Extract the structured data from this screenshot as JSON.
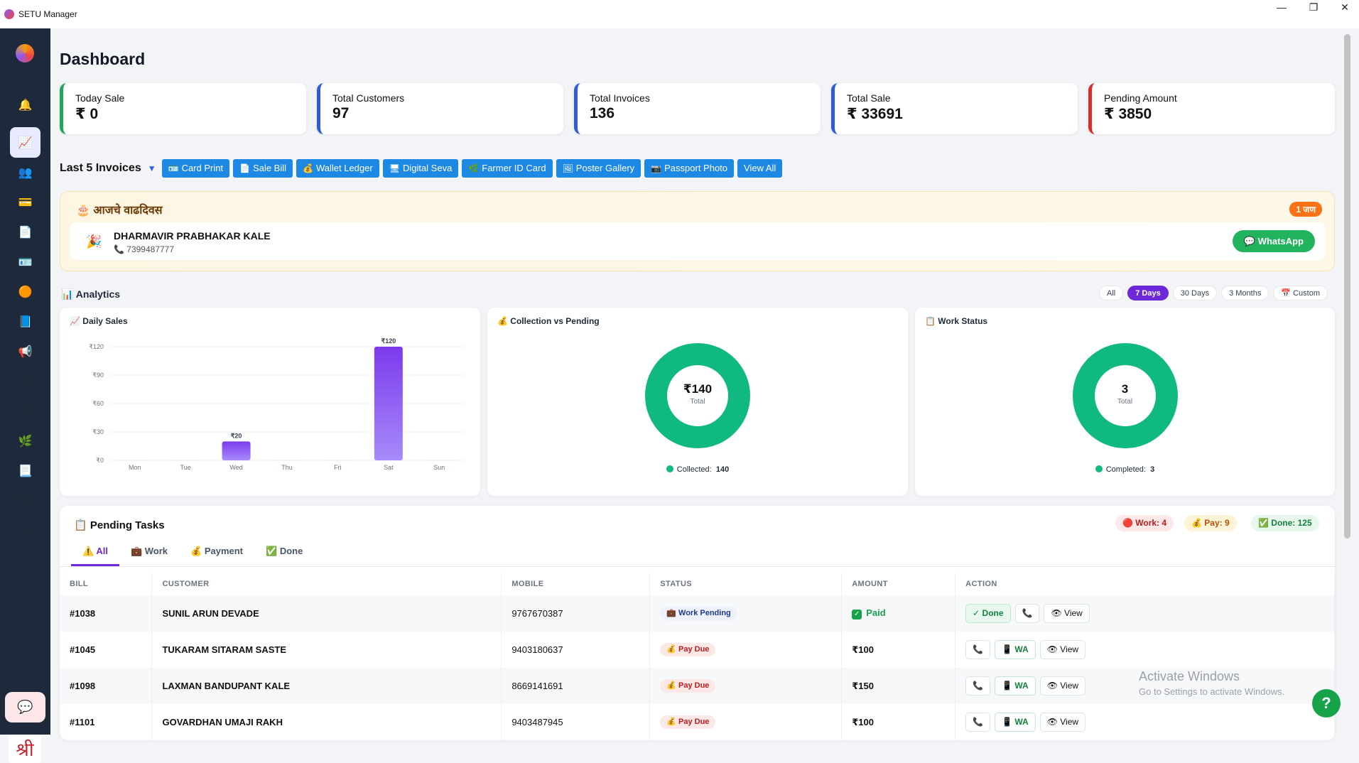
{
  "window": {
    "title": "SETU Manager",
    "minimize": "—",
    "maximize": "❐",
    "close": "✕"
  },
  "sidebar": {
    "items": [
      {
        "icon": "bell-icon",
        "glyph": "🔔"
      },
      {
        "icon": "chart-icon",
        "glyph": "📈",
        "active": true
      },
      {
        "icon": "users-icon",
        "glyph": "👥"
      },
      {
        "icon": "card-icon",
        "glyph": "💳"
      },
      {
        "icon": "document-icon",
        "glyph": "📄"
      },
      {
        "icon": "id-card-icon",
        "glyph": "🪪"
      },
      {
        "icon": "coin-icon",
        "glyph": "🟠"
      },
      {
        "icon": "book-icon",
        "glyph": "📘"
      },
      {
        "icon": "megaphone-icon",
        "glyph": "📢"
      },
      {
        "icon": "image-icon",
        "glyph": "🖼"
      },
      {
        "icon": "printer-icon",
        "glyph": "🖨"
      },
      {
        "icon": "plant-icon",
        "glyph": "🌿"
      },
      {
        "icon": "file-icon",
        "glyph": "📃"
      },
      {
        "icon": "monitor-icon",
        "glyph": "🖥"
      },
      {
        "icon": "gear-icon",
        "glyph": "⚙"
      }
    ],
    "chat_glyph": "💬",
    "bottom_logo": "श्री"
  },
  "page": {
    "title": "Dashboard"
  },
  "stats": [
    {
      "label": "Today Sale",
      "value": "₹ 0",
      "color": "#22a55a"
    },
    {
      "label": "Total Customers",
      "value": "97",
      "color": "#2f5bd6"
    },
    {
      "label": "Total Invoices",
      "value": "136",
      "color": "#2f5bd6"
    },
    {
      "label": "Total Sale",
      "value": "₹ 33691",
      "color": "#2f5bd6"
    },
    {
      "label": "Pending Amount",
      "value": "₹ 3850",
      "color": "#d92d2d"
    }
  ],
  "invoices": {
    "title": "Last 5 Invoices",
    "caret": "▼",
    "buttons": [
      {
        "label": "Card Print",
        "glyph": "🪪"
      },
      {
        "label": "Sale Bill",
        "glyph": "📄"
      },
      {
        "label": "Wallet Ledger",
        "glyph": "💰"
      },
      {
        "label": "Digital Seva",
        "glyph": "🖥"
      },
      {
        "label": "Farmer ID Card",
        "glyph": "🌿"
      },
      {
        "label": "Poster Gallery",
        "glyph": "🖼"
      },
      {
        "label": "Passport Photo",
        "glyph": "📷"
      },
      {
        "label": "View All",
        "glyph": ""
      }
    ]
  },
  "birthday": {
    "title": "🎂 आजचे वाढदिवस",
    "badge": "1 जण",
    "party_glyph": "🎉",
    "name": "DHARMAVIR PRABHAKAR KALE",
    "phone": "📞 7399487777",
    "whatsapp": "💬 WhatsApp"
  },
  "analytics": {
    "title": "📊 Analytics",
    "ranges": [
      "All",
      "7 Days",
      "30 Days",
      "3 Months",
      "📅 Custom"
    ],
    "active_range": "7 Days",
    "daily_title": "📈 Daily Sales",
    "collection_title": "💰 Collection vs Pending",
    "collection_total": "₹140",
    "collection_sub": "Total",
    "collection_legend": "Collected:",
    "collection_legend_value": "140",
    "work_title": "📋 Work Status",
    "work_total": "3",
    "work_sub": "Total",
    "work_legend": "Completed:",
    "work_legend_value": "3"
  },
  "chart_data": {
    "type": "bar",
    "title": "Daily Sales",
    "categories": [
      "Mon",
      "Tue",
      "Wed",
      "Thu",
      "Fri",
      "Sat",
      "Sun"
    ],
    "values": [
      0,
      0,
      20,
      0,
      0,
      120,
      0
    ],
    "data_labels": [
      "",
      "",
      "₹20",
      "",
      "",
      "₹120",
      ""
    ],
    "yticks": [
      "₹0",
      "₹30",
      "₹60",
      "₹90",
      "₹120"
    ],
    "ylim": [
      0,
      120
    ],
    "grid": true,
    "bar_color": "#8b5cf6"
  },
  "tasks": {
    "title": "📋 Pending Tasks",
    "counts": [
      {
        "label": "🔴 Work: 4",
        "bg": "#fde8e8",
        "fg": "#b91c1c"
      },
      {
        "label": "💰 Pay: 9",
        "bg": "#fdf3d6",
        "fg": "#b45309"
      },
      {
        "label": "✅ Done: 125",
        "bg": "#e6f7ec",
        "fg": "#15803d"
      }
    ],
    "tabs": [
      "⚠️ All",
      "💼 Work",
      "💰 Payment",
      "✅ Done"
    ],
    "columns": [
      "BILL",
      "CUSTOMER",
      "MOBILE",
      "STATUS",
      "AMOUNT",
      "ACTION"
    ],
    "rows": [
      {
        "bill": "#1038",
        "customer": "SUNIL ARUN DEVADE",
        "mobile": "9767670387",
        "status": "💼 Work Pending",
        "status_kind": "work",
        "amount": "Paid",
        "paid": true,
        "actions": [
          "✓ Done",
          "📞",
          "👁 View"
        ]
      },
      {
        "bill": "#1045",
        "customer": "TUKARAM SITARAM SASTE",
        "mobile": "9403180637",
        "status": "💰 Pay Due",
        "status_kind": "pay",
        "amount": "₹100",
        "paid": false,
        "actions": [
          "📞",
          "📱 WA",
          "👁 View"
        ]
      },
      {
        "bill": "#1098",
        "customer": "LAXMAN BANDUPANT KALE",
        "mobile": "8669141691",
        "status": "💰 Pay Due",
        "status_kind": "pay",
        "amount": "₹150",
        "paid": false,
        "actions": [
          "📞",
          "📱 WA",
          "👁 View"
        ]
      },
      {
        "bill": "#1101",
        "customer": "GOVARDHAN UMAJI RAKH",
        "mobile": "9403487945",
        "status": "💰 Pay Due",
        "status_kind": "pay",
        "amount": "₹100",
        "paid": false,
        "actions": [
          "📞",
          "📱 WA",
          "👁 View"
        ]
      }
    ]
  },
  "os_watermark": {
    "line1": "Activate Windows",
    "line2": "Go to Settings to activate Windows."
  },
  "help": "?"
}
